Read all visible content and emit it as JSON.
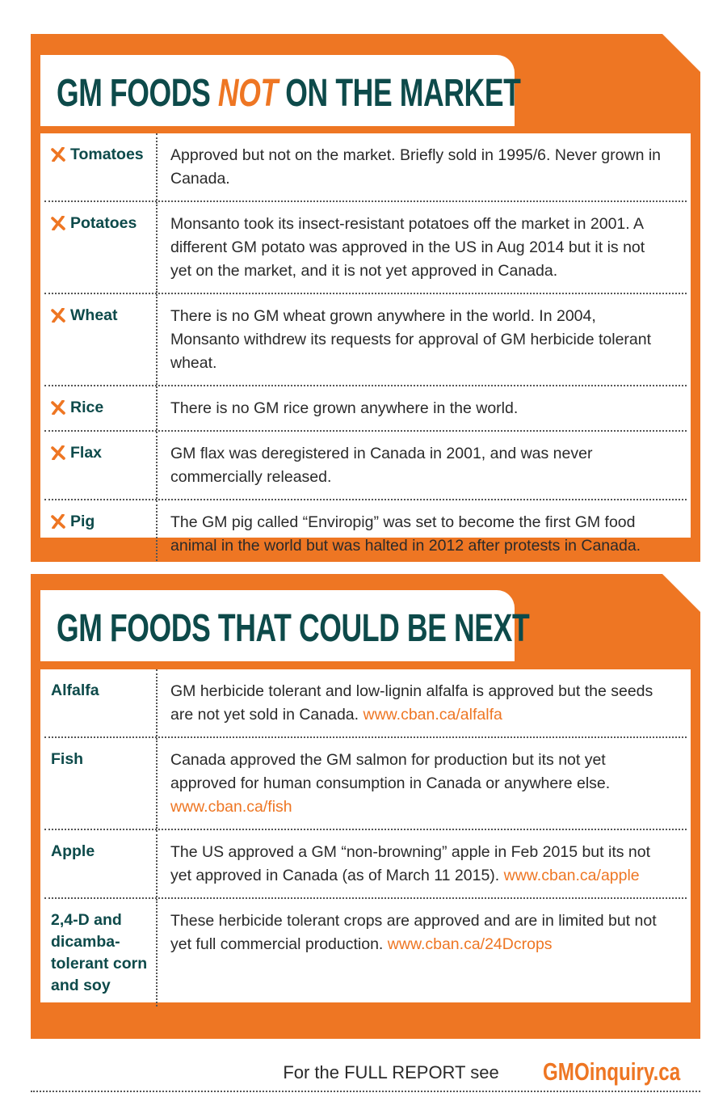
{
  "sections": [
    {
      "title": {
        "before": "GM FOODS ",
        "emphasis": "NOT",
        "after": " ON THE MARKET"
      },
      "rows": [
        {
          "name": "Tomatoes",
          "text": "Approved but not on the market. Briefly sold in 1995/6. Never grown in Canada."
        },
        {
          "name": "Potatoes",
          "text": "Monsanto took its insect-resistant potatoes off the market in 2001. A different GM potato was approved in the US in Aug 2014 but it is not yet on the market, and it is not yet approved in Canada."
        },
        {
          "name": "Wheat",
          "text": "There is no GM wheat grown anywhere in the world. In 2004, Monsanto withdrew its requests for approval of GM herbicide tolerant wheat."
        },
        {
          "name": "Rice",
          "text": "There is no GM rice grown anywhere in the world."
        },
        {
          "name": "Flax",
          "text": "GM flax was deregistered in Canada in 2001, and was never commercially released."
        },
        {
          "name": "Pig",
          "text": "The GM pig called “Enviropig” was set to become the first GM food animal in the world but was halted in 2012 after protests in Canada."
        }
      ]
    },
    {
      "title": {
        "before": "GM FOODS THAT COULD BE NEXT"
      },
      "rows": [
        {
          "name": "Alfalfa",
          "text": "GM herbicide tolerant and low-lignin alfalfa is approved but the seeds are not yet sold in Canada.",
          "link": "www.cban.ca/alfalfa"
        },
        {
          "name": "Fish",
          "text": "Canada approved the GM salmon for production but its not yet approved for human consumption in Canada or anywhere else.",
          "link": "www.cban.ca/fish"
        },
        {
          "name": "Apple",
          "text": "The US approved a GM “non-browning” apple in Feb 2015 but its not yet approved in Canada (as of March 11 2015).",
          "link": "www.cban.ca/apple"
        },
        {
          "name": "2,4-D and dicamba-tolerant corn and soy",
          "text": "These herbicide tolerant crops are approved and are in limited but not yet full commercial production.",
          "link": "www.cban.ca/24Dcrops"
        }
      ]
    }
  ],
  "footer": {
    "text": "For the FULL REPORT see",
    "site": "GMOinquiry.ca"
  }
}
